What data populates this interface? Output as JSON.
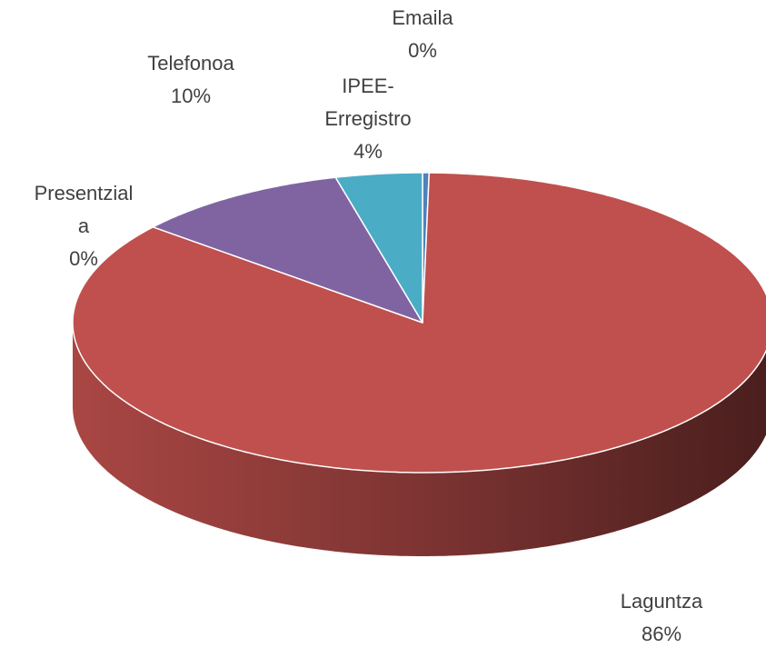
{
  "chart_data": {
    "type": "pie",
    "categories": [
      "Emaila",
      "Laguntza",
      "Presentziala",
      "Telefonoa",
      "IPEE-Erregistro"
    ],
    "values": [
      0.3,
      85.7,
      0,
      10,
      4
    ],
    "value_labels": [
      "0%",
      "86%",
      "0%",
      "10%",
      "4%"
    ],
    "colors": [
      "#4f81bd",
      "#c0504d",
      "#9bbb59",
      "#8064a2",
      "#4bacc6"
    ]
  }
}
